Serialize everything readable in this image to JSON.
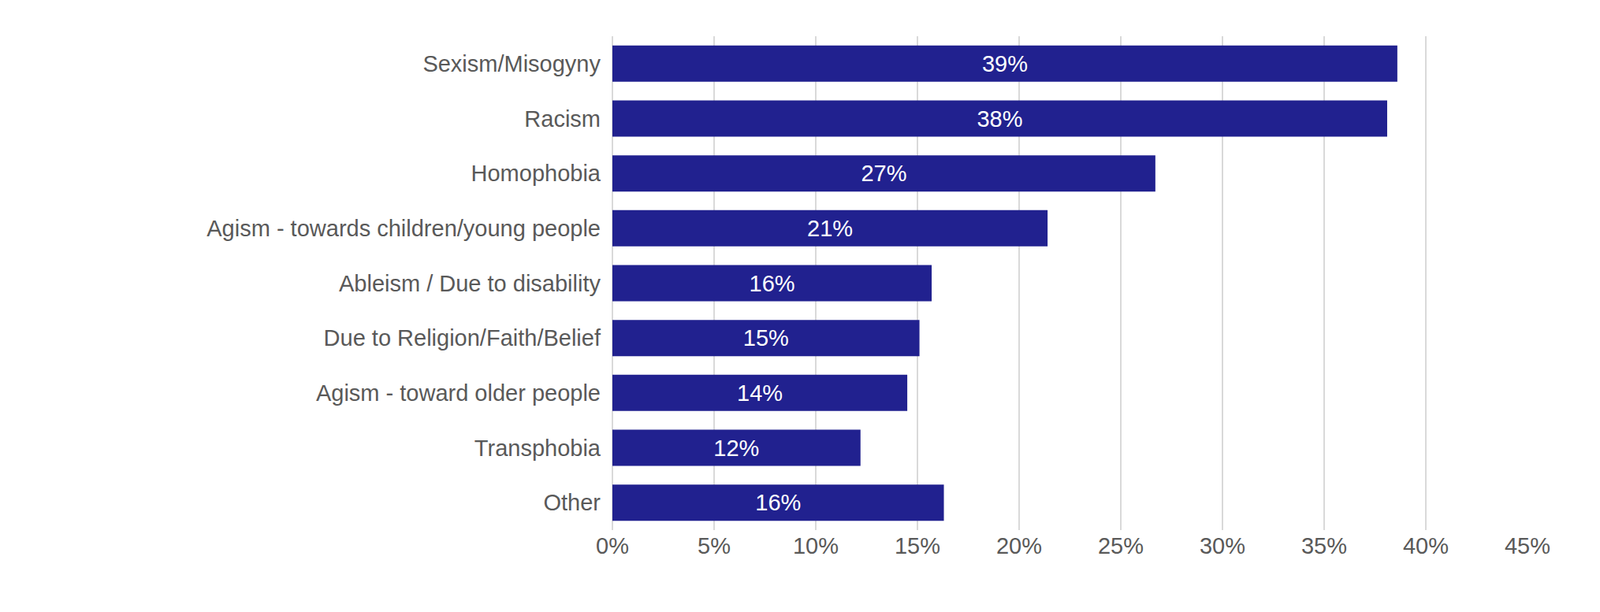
{
  "chart_data": {
    "type": "bar",
    "orientation": "horizontal",
    "categories": [
      "Sexism/Misogyny",
      "Racism",
      "Homophobia",
      "Agism - towards children/young people",
      "Ableism / Due to disability",
      "Due to Religion/Faith/Belief",
      "Agism - toward older people",
      "Transphobia",
      "Other"
    ],
    "values": [
      38.6,
      38.1,
      26.7,
      21.4,
      15.7,
      15.1,
      14.5,
      12.2,
      16.3
    ],
    "value_labels": [
      "39%",
      "38%",
      "27%",
      "21%",
      "16%",
      "15%",
      "14%",
      "12%",
      "16%"
    ],
    "color": "#21218f",
    "xlim": [
      0,
      45
    ],
    "xticks": [
      {
        "value": 0,
        "label": "0%"
      },
      {
        "value": 5,
        "label": "5%"
      },
      {
        "value": 10,
        "label": "10%"
      },
      {
        "value": 15,
        "label": "15%"
      },
      {
        "value": 20,
        "label": "20%"
      },
      {
        "value": 25,
        "label": "25%"
      },
      {
        "value": 30,
        "label": "30%"
      },
      {
        "value": 35,
        "label": "35%"
      },
      {
        "value": 40,
        "label": "40%"
      },
      {
        "value": 45,
        "label": "45%"
      }
    ],
    "grid": true,
    "data_labels": true
  }
}
